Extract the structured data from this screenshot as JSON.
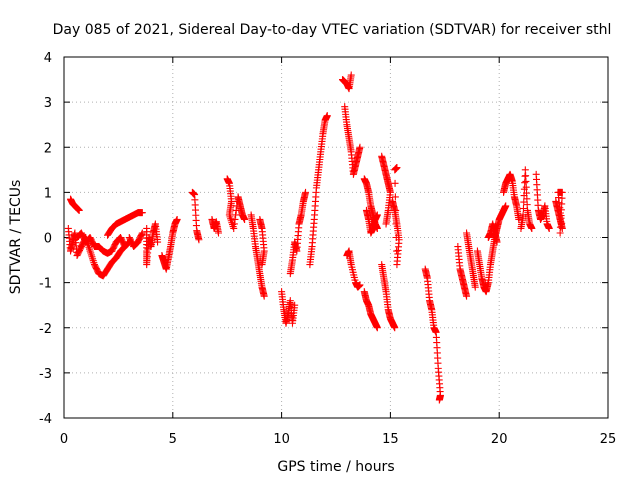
{
  "chart_data": {
    "type": "scatter",
    "title": "Day 085 of 2021, Sidereal Day-to-day VTEC variation (SDTVAR) for receiver sthl",
    "xlabel": "GPS time / hours",
    "ylabel": "SDTVAR / TECUs",
    "xlim": [
      0,
      25
    ],
    "ylim": [
      -4,
      4
    ],
    "xticks": [
      "0",
      "5",
      "10",
      "15",
      "20",
      "25"
    ],
    "yticks": [
      "-4",
      "-3",
      "-2",
      "-1",
      "0",
      "1",
      "2",
      "3",
      "4"
    ],
    "grid": true,
    "marker": "plus",
    "series": [
      {
        "name": "SDTVAR",
        "color": "#ff0000",
        "segments": [
          [
            [
              0.2,
              0.2
            ],
            [
              0.3,
              -0.3
            ],
            [
              0.4,
              -0.1
            ],
            [
              0.5,
              0.1
            ],
            [
              0.6,
              -0.4
            ],
            [
              0.8,
              -0.2
            ],
            [
              1.0,
              0.0
            ],
            [
              1.2,
              -0.3
            ],
            [
              1.4,
              -0.6
            ],
            [
              1.6,
              -0.8
            ],
            [
              1.8,
              -0.85
            ],
            [
              2.0,
              -0.7
            ],
            [
              2.2,
              -0.55
            ],
            [
              2.4,
              -0.45
            ],
            [
              2.6,
              -0.3
            ],
            [
              2.8,
              -0.2
            ],
            [
              3.0,
              -0.1
            ]
          ],
          [
            [
              0.3,
              0.85
            ],
            [
              0.4,
              0.75
            ],
            [
              0.5,
              0.7
            ],
            [
              0.6,
              0.65
            ],
            [
              0.7,
              0.6
            ]
          ],
          [
            [
              0.6,
              0.0
            ],
            [
              0.8,
              0.1
            ],
            [
              1.0,
              -0.1
            ],
            [
              1.2,
              0.0
            ],
            [
              1.4,
              -0.2
            ],
            [
              1.6,
              -0.2
            ],
            [
              1.8,
              -0.3
            ],
            [
              2.0,
              -0.35
            ],
            [
              2.2,
              -0.3
            ],
            [
              2.4,
              -0.1
            ],
            [
              2.6,
              0.0
            ],
            [
              2.8,
              -0.2
            ]
          ],
          [
            [
              2.0,
              0.05
            ],
            [
              2.2,
              0.2
            ],
            [
              2.4,
              0.3
            ],
            [
              2.6,
              0.35
            ],
            [
              2.8,
              0.4
            ],
            [
              3.0,
              0.45
            ],
            [
              3.2,
              0.5
            ],
            [
              3.4,
              0.55
            ],
            [
              3.6,
              0.55
            ]
          ],
          [
            [
              3.0,
              0.0
            ],
            [
              3.2,
              -0.2
            ],
            [
              3.4,
              -0.1
            ],
            [
              3.6,
              0.1
            ]
          ],
          [
            [
              3.8,
              0.2
            ],
            [
              3.8,
              -0.3
            ],
            [
              3.8,
              -0.6
            ],
            [
              3.9,
              0.0
            ],
            [
              4.0,
              -0.2
            ],
            [
              4.1,
              0.1
            ],
            [
              4.2,
              0.3
            ],
            [
              4.3,
              -0.1
            ]
          ],
          [
            [
              4.5,
              -0.4
            ],
            [
              4.6,
              -0.55
            ],
            [
              4.7,
              -0.7
            ],
            [
              4.8,
              -0.45
            ],
            [
              4.9,
              -0.2
            ],
            [
              5.0,
              0.1
            ],
            [
              5.1,
              0.3
            ],
            [
              5.2,
              0.4
            ]
          ],
          [
            [
              5.9,
              1.0
            ],
            [
              6.0,
              0.95
            ],
            [
              6.1,
              0.15
            ],
            [
              6.2,
              -0.05
            ]
          ],
          [
            [
              6.8,
              0.4
            ],
            [
              6.9,
              0.2
            ],
            [
              7.0,
              0.35
            ],
            [
              7.1,
              0.1
            ]
          ],
          [
            [
              7.5,
              1.3
            ],
            [
              7.6,
              1.2
            ],
            [
              7.7,
              0.8
            ],
            [
              7.6,
              0.5
            ],
            [
              7.8,
              0.2
            ],
            [
              8.0,
              0.9
            ],
            [
              8.1,
              0.7
            ],
            [
              8.2,
              0.5
            ],
            [
              8.3,
              0.4
            ]
          ],
          [
            [
              8.6,
              0.5
            ],
            [
              8.7,
              0.2
            ],
            [
              8.8,
              -0.2
            ],
            [
              8.9,
              -0.5
            ],
            [
              9.0,
              -0.8
            ],
            [
              9.1,
              -1.1
            ],
            [
              9.2,
              -1.3
            ]
          ],
          [
            [
              9.0,
              0.4
            ],
            [
              9.1,
              0.2
            ],
            [
              9.2,
              -0.3
            ],
            [
              9.1,
              -0.6
            ]
          ],
          [
            [
              10.0,
              -1.2
            ],
            [
              10.1,
              -1.6
            ],
            [
              10.2,
              -1.9
            ],
            [
              10.3,
              -1.7
            ],
            [
              10.4,
              -1.4
            ],
            [
              10.5,
              -1.9
            ],
            [
              10.6,
              -1.5
            ]
          ],
          [
            [
              10.4,
              -0.8
            ],
            [
              10.5,
              -0.5
            ],
            [
              10.6,
              -0.1
            ],
            [
              10.7,
              -0.3
            ],
            [
              10.8,
              0.3
            ],
            [
              10.9,
              0.5
            ],
            [
              11.0,
              0.8
            ],
            [
              11.1,
              1.0
            ]
          ],
          [
            [
              11.3,
              -0.6
            ],
            [
              11.4,
              -0.2
            ],
            [
              11.5,
              0.4
            ],
            [
              11.6,
              1.1
            ],
            [
              11.7,
              1.5
            ],
            [
              11.8,
              1.9
            ],
            [
              11.9,
              2.3
            ],
            [
              12.0,
              2.6
            ],
            [
              12.1,
              2.7
            ]
          ],
          [
            [
              12.8,
              3.5
            ],
            [
              12.9,
              3.45
            ],
            [
              13.0,
              3.4
            ],
            [
              13.1,
              3.3
            ],
            [
              13.2,
              3.6
            ]
          ],
          [
            [
              12.9,
              2.9
            ],
            [
              13.0,
              2.5
            ],
            [
              13.1,
              2.2
            ],
            [
              13.2,
              1.9
            ],
            [
              13.3,
              1.4
            ],
            [
              13.4,
              1.6
            ],
            [
              13.5,
              1.8
            ],
            [
              13.6,
              2.0
            ]
          ],
          [
            [
              13.0,
              -0.4
            ],
            [
              13.1,
              -0.3
            ],
            [
              13.2,
              -0.6
            ],
            [
              13.4,
              -1.0
            ],
            [
              13.5,
              -1.1
            ],
            [
              13.6,
              -1.05
            ]
          ],
          [
            [
              13.8,
              1.3
            ],
            [
              13.9,
              1.2
            ],
            [
              14.0,
              1.0
            ],
            [
              14.1,
              0.7
            ],
            [
              14.2,
              0.5
            ],
            [
              14.3,
              0.3
            ],
            [
              14.4,
              0.2
            ]
          ],
          [
            [
              13.8,
              -1.2
            ],
            [
              13.9,
              -1.4
            ],
            [
              14.0,
              -1.5
            ],
            [
              14.1,
              -1.7
            ],
            [
              14.2,
              -1.8
            ],
            [
              14.3,
              -1.9
            ],
            [
              14.4,
              -2.0
            ]
          ],
          [
            [
              13.9,
              0.6
            ],
            [
              14.0,
              0.4
            ],
            [
              14.1,
              0.1
            ],
            [
              14.2,
              0.2
            ],
            [
              14.3,
              0.4
            ],
            [
              14.4,
              0.5
            ]
          ],
          [
            [
              14.6,
              1.8
            ],
            [
              14.7,
              1.6
            ],
            [
              14.8,
              1.4
            ],
            [
              14.9,
              1.2
            ],
            [
              15.0,
              1.0
            ],
            [
              14.9,
              0.6
            ],
            [
              14.8,
              0.3
            ]
          ],
          [
            [
              14.6,
              -0.6
            ],
            [
              14.7,
              -0.9
            ],
            [
              14.8,
              -1.2
            ],
            [
              14.9,
              -1.6
            ],
            [
              15.0,
              -1.8
            ],
            [
              15.1,
              -1.9
            ],
            [
              15.2,
              -2.0
            ]
          ],
          [
            [
              15.1,
              0.8
            ],
            [
              15.2,
              0.6
            ],
            [
              15.3,
              0.3
            ],
            [
              15.4,
              -0.05
            ],
            [
              15.3,
              -0.6
            ],
            [
              15.2,
              1.5
            ],
            [
              15.3,
              1.55
            ]
          ],
          [
            [
              16.6,
              -0.7
            ],
            [
              16.7,
              -0.9
            ],
            [
              16.8,
              -1.4
            ],
            [
              16.9,
              -1.6
            ],
            [
              17.0,
              -2.0
            ],
            [
              17.1,
              -2.1
            ],
            [
              17.2,
              -2.9
            ],
            [
              17.3,
              -3.5
            ],
            [
              17.25,
              -3.6
            ]
          ],
          [
            [
              18.1,
              -0.2
            ],
            [
              18.2,
              -0.7
            ],
            [
              18.3,
              -0.9
            ],
            [
              18.4,
              -1.1
            ],
            [
              18.5,
              -1.3
            ]
          ],
          [
            [
              18.5,
              0.1
            ],
            [
              18.6,
              -0.2
            ],
            [
              18.7,
              -0.5
            ],
            [
              18.8,
              -0.8
            ],
            [
              18.9,
              -1.1
            ]
          ],
          [
            [
              19.0,
              -0.3
            ],
            [
              19.1,
              -0.6
            ],
            [
              19.2,
              -0.9
            ],
            [
              19.3,
              -1.1
            ],
            [
              19.4,
              -1.2
            ],
            [
              19.5,
              -1.0
            ],
            [
              19.6,
              -0.6
            ],
            [
              19.7,
              -0.3
            ],
            [
              19.8,
              0.0
            ],
            [
              19.9,
              0.2
            ],
            [
              20.0,
              0.4
            ],
            [
              20.1,
              0.5
            ],
            [
              20.2,
              0.6
            ],
            [
              20.3,
              0.7
            ]
          ],
          [
            [
              19.5,
              0.0
            ],
            [
              19.6,
              0.1
            ],
            [
              19.7,
              0.3
            ],
            [
              19.8,
              0.1
            ],
            [
              19.9,
              -0.1
            ]
          ],
          [
            [
              20.2,
              1.0
            ],
            [
              20.3,
              1.2
            ],
            [
              20.4,
              1.3
            ],
            [
              20.5,
              1.4
            ],
            [
              20.6,
              1.25
            ],
            [
              20.7,
              0.9
            ],
            [
              20.8,
              0.7
            ],
            [
              20.9,
              0.4
            ]
          ],
          [
            [
              21.0,
              0.2
            ],
            [
              21.1,
              0.5
            ],
            [
              21.2,
              1.5
            ],
            [
              21.3,
              0.6
            ],
            [
              21.4,
              0.3
            ],
            [
              21.5,
              0.2
            ]
          ],
          [
            [
              21.7,
              1.4
            ],
            [
              21.8,
              0.6
            ],
            [
              21.9,
              0.4
            ],
            [
              22.0,
              0.5
            ],
            [
              22.1,
              0.7
            ],
            [
              22.2,
              0.3
            ],
            [
              22.3,
              0.2
            ]
          ],
          [
            [
              22.6,
              0.8
            ],
            [
              22.7,
              0.6
            ],
            [
              22.8,
              0.4
            ],
            [
              22.9,
              0.2
            ],
            [
              22.7,
              1.0
            ],
            [
              22.9,
              1.0
            ],
            [
              22.8,
              0.1
            ]
          ]
        ]
      }
    ]
  }
}
